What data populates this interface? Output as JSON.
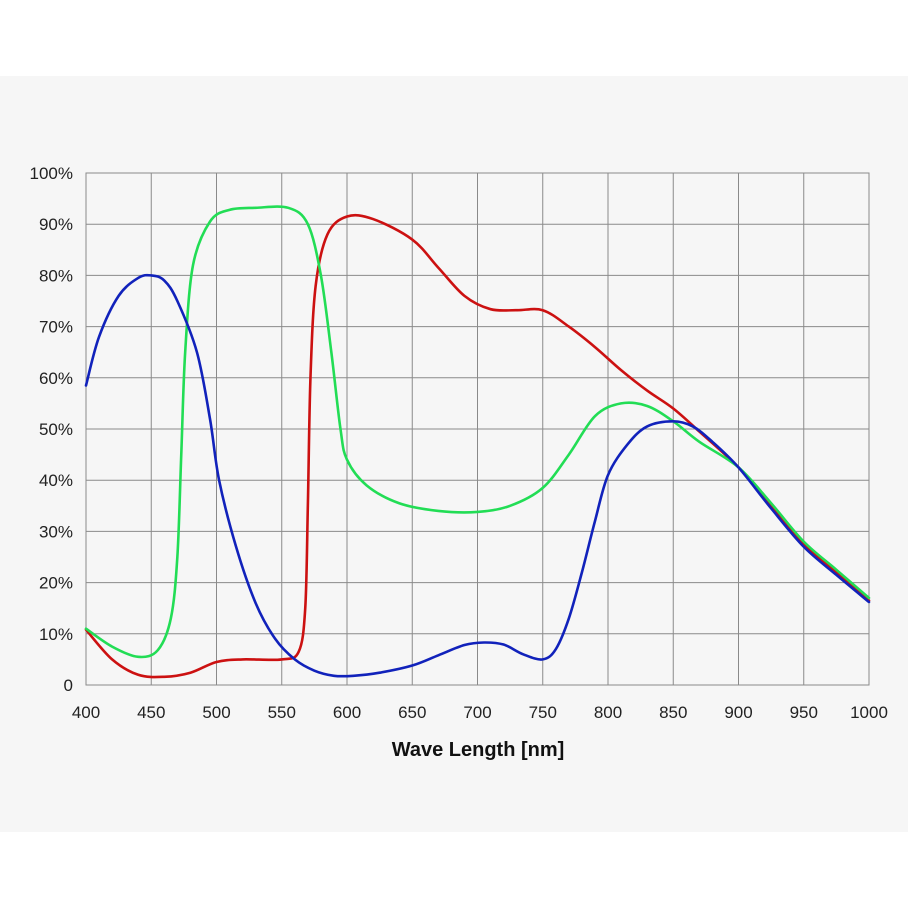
{
  "chart_data": {
    "type": "line",
    "title": "",
    "xlabel": "Wave Length [nm]",
    "ylabel": "",
    "xlim": [
      400,
      1000
    ],
    "ylim": [
      0,
      100
    ],
    "x_ticks": [
      400,
      450,
      500,
      550,
      600,
      650,
      700,
      750,
      800,
      850,
      900,
      950,
      1000
    ],
    "x_tick_labels": [
      "400",
      "450",
      "500",
      "550",
      "600",
      "650",
      "700",
      "750",
      "800",
      "850",
      "900",
      "950",
      "1000"
    ],
    "y_ticks": [
      0,
      10,
      20,
      30,
      40,
      50,
      60,
      70,
      80,
      90,
      100
    ],
    "y_tick_labels": [
      "0",
      "10%",
      "20%",
      "30%",
      "40%",
      "50%",
      "60%",
      "70%",
      "80%",
      "90%",
      "100%"
    ],
    "grid": true,
    "legend": "none",
    "series": [
      {
        "name": "red",
        "color": "#cc1111",
        "points": [
          [
            400,
            10.8
          ],
          [
            420,
            5
          ],
          [
            440,
            2
          ],
          [
            460,
            1.6
          ],
          [
            480,
            2.4
          ],
          [
            500,
            4.5
          ],
          [
            520,
            5
          ],
          [
            550,
            5
          ],
          [
            563,
            6.5
          ],
          [
            568,
            15
          ],
          [
            570,
            35
          ],
          [
            572,
            60
          ],
          [
            576,
            78
          ],
          [
            585,
            88
          ],
          [
            600,
            91.5
          ],
          [
            620,
            91
          ],
          [
            650,
            87
          ],
          [
            670,
            81.5
          ],
          [
            690,
            76
          ],
          [
            710,
            73.4
          ],
          [
            730,
            73.2
          ],
          [
            750,
            73.2
          ],
          [
            770,
            70
          ],
          [
            790,
            66
          ],
          [
            810,
            61.5
          ],
          [
            830,
            57.5
          ],
          [
            850,
            54
          ],
          [
            870,
            49.5
          ],
          [
            900,
            42.5
          ],
          [
            925,
            35
          ],
          [
            950,
            27.5
          ],
          [
            975,
            22
          ],
          [
            1000,
            16.5
          ]
        ]
      },
      {
        "name": "green",
        "color": "#22dd55",
        "points": [
          [
            400,
            11
          ],
          [
            420,
            7.5
          ],
          [
            440,
            5.5
          ],
          [
            455,
            6.8
          ],
          [
            465,
            13
          ],
          [
            470,
            25
          ],
          [
            473,
            45
          ],
          [
            476,
            65
          ],
          [
            482,
            82
          ],
          [
            495,
            90.5
          ],
          [
            510,
            92.8
          ],
          [
            530,
            93.2
          ],
          [
            555,
            93.2
          ],
          [
            570,
            90
          ],
          [
            580,
            80
          ],
          [
            588,
            65
          ],
          [
            595,
            50
          ],
          [
            600,
            44
          ],
          [
            615,
            39
          ],
          [
            640,
            35.5
          ],
          [
            670,
            34
          ],
          [
            700,
            33.8
          ],
          [
            725,
            35
          ],
          [
            750,
            38.5
          ],
          [
            770,
            45
          ],
          [
            790,
            52.5
          ],
          [
            810,
            55
          ],
          [
            830,
            54.5
          ],
          [
            850,
            51.5
          ],
          [
            870,
            47.5
          ],
          [
            900,
            42.5
          ],
          [
            925,
            35.5
          ],
          [
            950,
            28
          ],
          [
            975,
            22.5
          ],
          [
            1000,
            17
          ]
        ]
      },
      {
        "name": "blue",
        "color": "#1122bb",
        "points": [
          [
            400,
            58.5
          ],
          [
            410,
            68
          ],
          [
            425,
            76
          ],
          [
            440,
            79.5
          ],
          [
            450,
            80
          ],
          [
            460,
            79
          ],
          [
            470,
            75
          ],
          [
            485,
            65
          ],
          [
            495,
            52
          ],
          [
            502,
            40
          ],
          [
            515,
            27
          ],
          [
            530,
            16
          ],
          [
            545,
            9
          ],
          [
            560,
            5
          ],
          [
            575,
            2.8
          ],
          [
            590,
            1.8
          ],
          [
            605,
            1.8
          ],
          [
            625,
            2.4
          ],
          [
            650,
            3.8
          ],
          [
            670,
            5.8
          ],
          [
            690,
            7.8
          ],
          [
            705,
            8.3
          ],
          [
            720,
            7.9
          ],
          [
            735,
            6
          ],
          [
            750,
            5
          ],
          [
            760,
            7
          ],
          [
            770,
            13
          ],
          [
            780,
            22
          ],
          [
            790,
            32
          ],
          [
            800,
            41
          ],
          [
            815,
            47
          ],
          [
            830,
            50.5
          ],
          [
            850,
            51.5
          ],
          [
            865,
            50.5
          ],
          [
            880,
            47.5
          ],
          [
            900,
            42.5
          ],
          [
            925,
            34.5
          ],
          [
            950,
            27
          ],
          [
            975,
            21.5
          ],
          [
            1000,
            16.2
          ]
        ]
      }
    ]
  }
}
